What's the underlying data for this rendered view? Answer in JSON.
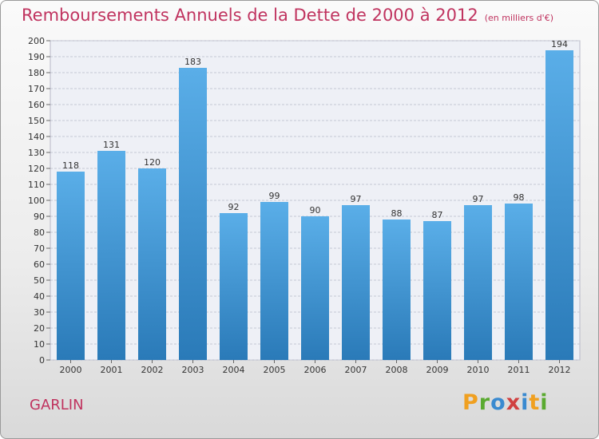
{
  "header": {
    "title": "Remboursements Annuels de la Dette de 2000 à 2012",
    "unit": "(en milliers d'€)"
  },
  "footer": {
    "commune": "GARLIN",
    "logo": "Proxiti"
  },
  "colors": {
    "title": "#c0335f",
    "bar_top": "#5aaee8",
    "bar_bottom": "#2a7ab8",
    "logo": [
      "#f0a020",
      "#5aaa30",
      "#3a8ad0",
      "#d04040",
      "#3a8ad0",
      "#f0a020",
      "#5aaa30"
    ]
  },
  "chart_data": {
    "type": "bar",
    "categories": [
      "2000",
      "2001",
      "2002",
      "2003",
      "2004",
      "2005",
      "2006",
      "2007",
      "2008",
      "2009",
      "2010",
      "2011",
      "2012"
    ],
    "values": [
      118,
      131,
      120,
      183,
      92,
      99,
      90,
      97,
      88,
      87,
      97,
      98,
      194
    ],
    "ylim": [
      0,
      200
    ],
    "yticks": [
      0,
      10,
      20,
      30,
      40,
      50,
      60,
      70,
      80,
      90,
      100,
      110,
      120,
      130,
      140,
      150,
      160,
      170,
      180,
      190,
      200
    ],
    "grid": true,
    "data_labels": true
  }
}
